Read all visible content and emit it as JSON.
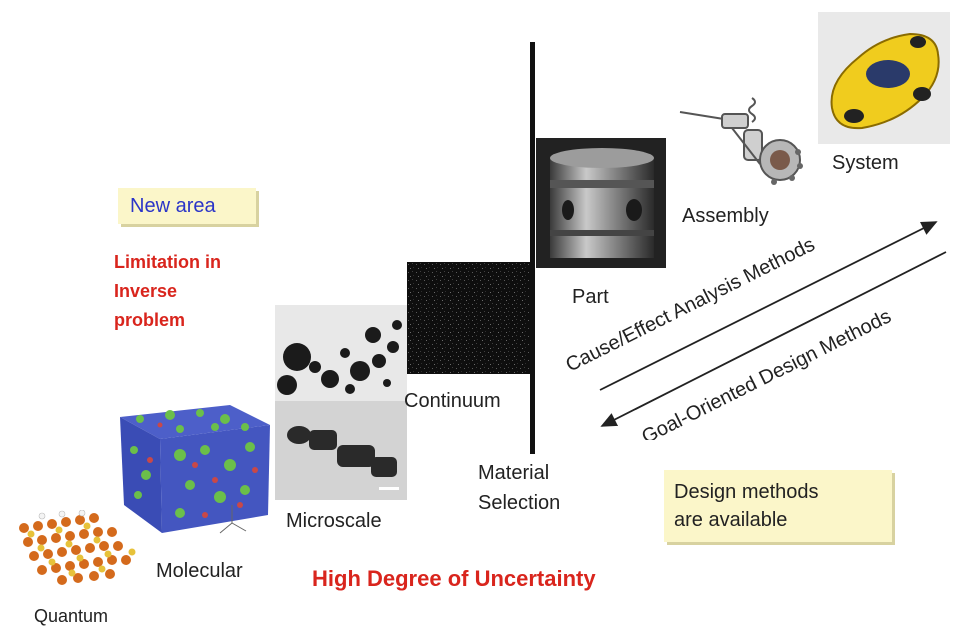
{
  "callouts": {
    "new_area": "New area",
    "design_methods": [
      "Design methods",
      "are available"
    ]
  },
  "limitation": [
    "Limitation in",
    "Inverse",
    "problem"
  ],
  "uncertainty": "High Degree of Uncertainty",
  "scales": {
    "quantum": "Quantum",
    "molecular": "Molecular",
    "microscale": "Microscale",
    "continuum": "Continuum",
    "material_selection": [
      "Material",
      "Selection"
    ],
    "part": "Part",
    "assembly": "Assembly",
    "system": "System"
  },
  "methods": {
    "cause_effect": "Cause/Effect Analysis Methods",
    "goal_oriented": "Goal-Oriented Design Methods"
  },
  "colors": {
    "red": "#d9251d",
    "callout_bg": "#fbf6c9",
    "new_area_text": "#2b35c8"
  }
}
